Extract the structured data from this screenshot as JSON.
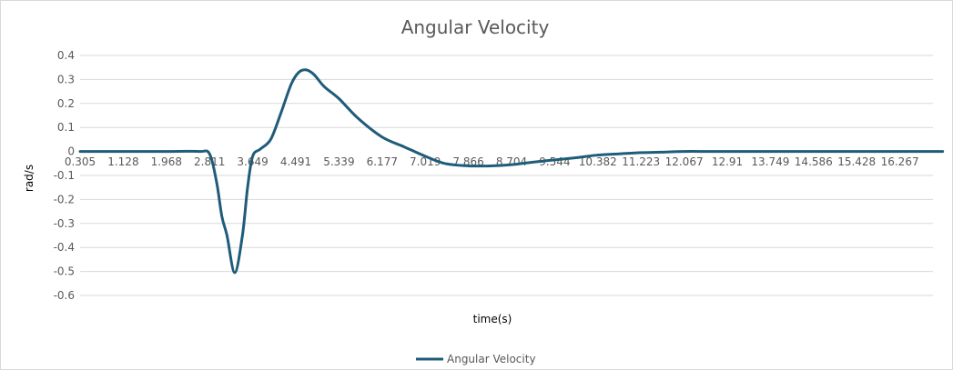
{
  "chart_data": {
    "type": "line",
    "title": "Angular Velocity",
    "xlabel": "time(s)",
    "ylabel": "rad/s",
    "ylim": [
      -0.6,
      0.4
    ],
    "y_ticks": [
      "0.4",
      "0.3",
      "0.2",
      "0.1",
      "0",
      "-0.1",
      "-0.2",
      "-0.3",
      "-0.4",
      "-0.5",
      "-0.6"
    ],
    "x_tick_labels": [
      "0.305",
      "1.128",
      "1.968",
      "2.811",
      "3.649",
      "4.491",
      "5.339",
      "6.177",
      "7.019",
      "7.866",
      "8.704",
      "9.544",
      "10.382",
      "11.223",
      "12.067",
      "12.91",
      "13.749",
      "14.586",
      "15.428",
      "16.267"
    ],
    "grid": true,
    "legend_position": "bottom",
    "series": [
      {
        "name": "Angular Velocity",
        "color": "#1f5c7a",
        "x": [
          0.305,
          1.128,
          1.968,
          2.6,
          2.811,
          2.95,
          3.05,
          3.15,
          3.3,
          3.45,
          3.55,
          3.649,
          3.8,
          4.0,
          4.2,
          4.4,
          4.55,
          4.7,
          4.85,
          5.05,
          5.339,
          5.7,
          6.177,
          6.6,
          7.019,
          7.4,
          7.866,
          8.3,
          8.704,
          9.1,
          9.544,
          10.0,
          10.382,
          10.8,
          11.223,
          11.6,
          12.067,
          12.5,
          12.91,
          13.749,
          14.586,
          15.428,
          16.267,
          17.1
        ],
        "y": [
          0,
          0,
          0,
          0,
          -0.01,
          -0.13,
          -0.27,
          -0.35,
          -0.505,
          -0.35,
          -0.15,
          -0.02,
          0.01,
          0.05,
          0.16,
          0.28,
          0.33,
          0.34,
          0.32,
          0.27,
          0.22,
          0.14,
          0.06,
          0.02,
          -0.02,
          -0.05,
          -0.06,
          -0.06,
          -0.055,
          -0.045,
          -0.035,
          -0.025,
          -0.015,
          -0.01,
          -0.005,
          -0.003,
          0,
          0,
          0,
          0,
          0,
          0,
          0,
          0
        ]
      }
    ]
  }
}
